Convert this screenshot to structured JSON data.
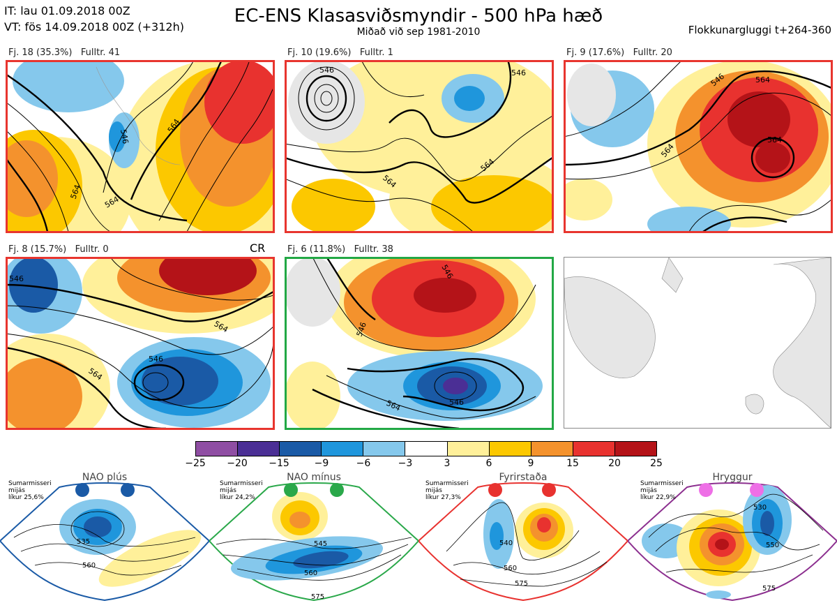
{
  "header": {
    "it_line": "IT: lau 01.09.2018 00Z",
    "vt_line": "VT: fös 14.09.2018 00Z  (+312h)",
    "title": "EC-ENS Klasasviðsmyndir - 500 hPa hæð",
    "subtitle": "Miðað við sep 1981-2010",
    "window": "Flokkunargluggi t+264-360"
  },
  "clusters": [
    {
      "label": "Fj. 18 (35.3%)",
      "members": "Fulltr. 41",
      "border": "#e8352e",
      "contours": [
        "564",
        "546",
        "564",
        "564"
      ]
    },
    {
      "label": "Fj. 10 (19.6%)",
      "members": "Fulltr. 1",
      "border": "#e8352e",
      "contours": [
        "546",
        "546",
        "564",
        "564"
      ]
    },
    {
      "label": "Fj. 9 (17.6%)",
      "members": "Fulltr. 20",
      "border": "#e8352e",
      "contours": [
        "546",
        "564",
        "564",
        "564"
      ]
    },
    {
      "label": "Fj. 8 (15.7%)",
      "members": "Fulltr. 0",
      "border": "#e8352e",
      "contours": [
        "546",
        "564",
        "564",
        "546"
      ],
      "tag": "CR"
    },
    {
      "label": "Fj. 6 (11.8%)",
      "members": "Fulltr. 38",
      "border": "#22a845",
      "contours": [
        "546",
        "546",
        "564",
        "546"
      ]
    }
  ],
  "colorbar": {
    "ticks": [
      "−25",
      "−20",
      "−15",
      "−9",
      "−6",
      "−3",
      "3",
      "6",
      "9",
      "15",
      "20",
      "25"
    ],
    "colors": [
      "#8f4ea3",
      "#4b2f95",
      "#1a5aa6",
      "#1f96dc",
      "#85c8ec",
      "#ffffff",
      "#fff09a",
      "#fcc800",
      "#f4922d",
      "#e8322f",
      "#b41318"
    ]
  },
  "regimes": [
    {
      "name": "NAO plús",
      "note": "Sumarmisseri\nmijás\nlíkur 25,6%",
      "color": "#1a5aa6",
      "dot": "#1a5aa6",
      "contours": [
        "535",
        "560"
      ]
    },
    {
      "name": "NAO mínus",
      "note": "Sumarmisseri\nmijás\nlíkur 24,2%",
      "color": "#2aa84a",
      "dot": "#2aa84a",
      "contours": [
        "545",
        "560",
        "575"
      ]
    },
    {
      "name": "Fyrirstaða",
      "note": "Sumarmisseri\nmijás\nlíkur 27,3%",
      "color": "#e8322f",
      "dot": "#e8322f",
      "contours": [
        "540",
        "560",
        "575"
      ]
    },
    {
      "name": "Hryggur",
      "note": "Sumarmisseri\nmijás\nlíkur 22,9%",
      "color": "#8c2f8f",
      "dot": "#ee6fe6",
      "contours": [
        "530",
        "550",
        "575"
      ]
    }
  ]
}
